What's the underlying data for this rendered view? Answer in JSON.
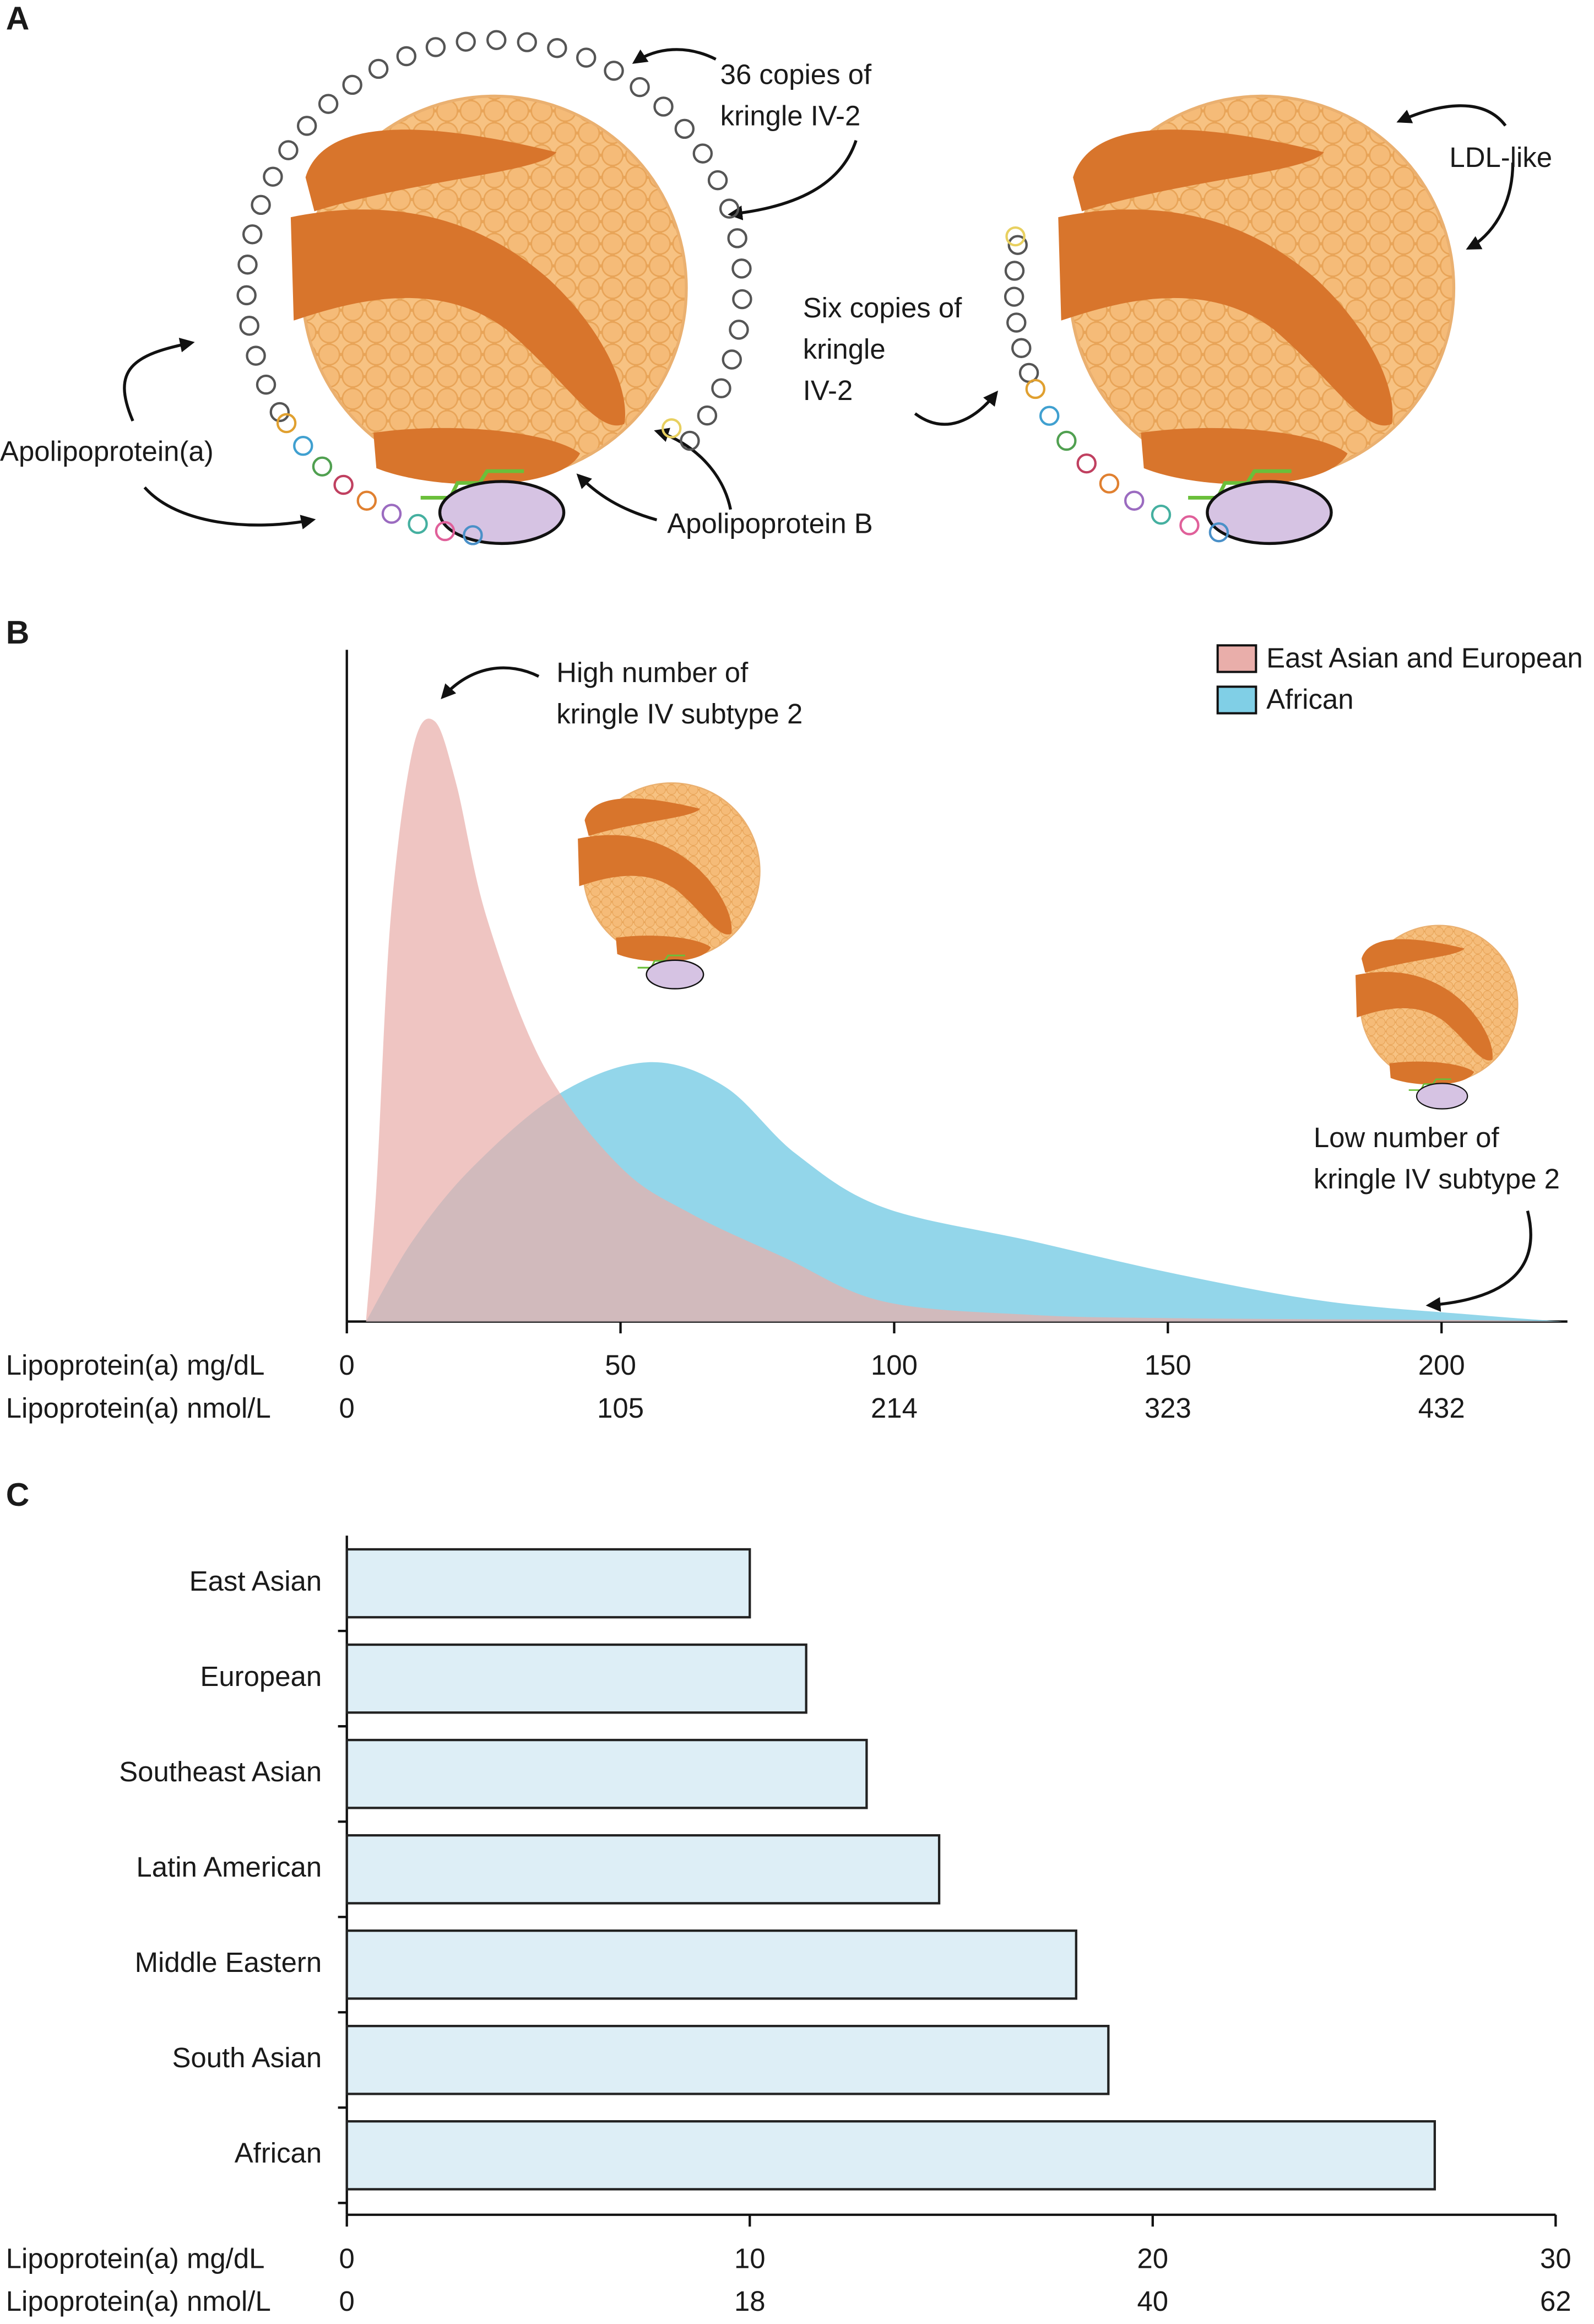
{
  "panel_a": {
    "label": "A",
    "copies_36": [
      "36 copies of",
      "kringle IV-2"
    ],
    "ldl_like": "LDL-like",
    "copies_6": [
      "Six copies of",
      "kringle",
      "IV-2"
    ],
    "apo_a": "Apolipoprotein(a)",
    "apo_b": "Apolipoprotein B"
  },
  "chart_data": [
    {
      "panel": "B",
      "type": "area",
      "x_label": "Lipoprotein(a) mg/dL",
      "x2_label": "Lipoprotein(a) nmol/L",
      "xlim": [
        0,
        223
      ],
      "xticks": [
        0,
        50,
        100,
        150,
        200
      ],
      "x2_tick_labels": [
        "0",
        "105",
        "214",
        "323",
        "432"
      ],
      "ylim": [
        0,
        100
      ],
      "legend": "top-right",
      "annotations": [
        [
          "High number of",
          "kringle IV subtype 2"
        ],
        [
          "Low number of",
          "kringle IV subtype 2"
        ]
      ],
      "series": [
        {
          "name": "East Asian and European",
          "color": "#e9aeaa",
          "x": [
            3.5,
            5.4,
            8,
            12,
            16,
            20,
            25.6,
            36,
            50,
            63,
            80,
            98,
            125,
            152,
            206,
            222
          ],
          "values": [
            0,
            20,
            60,
            85,
            89.4,
            80,
            60,
            38,
            23,
            16,
            9.5,
            3,
            1,
            0.5,
            0.2,
            0
          ]
        },
        {
          "name": "African",
          "color": "#80cfe6",
          "x": [
            3.5,
            12,
            23,
            39,
            55,
            69,
            82,
            98,
            125,
            152,
            179,
            206,
            222
          ],
          "values": [
            0,
            12,
            23,
            34,
            38.6,
            35,
            25,
            17,
            12,
            7,
            3,
            1,
            0
          ]
        }
      ]
    },
    {
      "panel": "C",
      "type": "hbar",
      "x_label": "Lipoprotein(a) mg/dL",
      "x2_label": "Lipoprotein(a) nmol/L",
      "xlim": [
        0,
        30
      ],
      "xticks": [
        0,
        10,
        20,
        30
      ],
      "x2_tick_labels": [
        "0",
        "18",
        "40",
        "62"
      ],
      "color": "#ddeef6",
      "categories": [
        "East Asian",
        "European",
        "Southeast Asian",
        "Latin American",
        "Middle Eastern",
        "South Asian",
        "African"
      ],
      "values": [
        10.0,
        11.4,
        12.9,
        14.7,
        18.1,
        18.9,
        27.0
      ]
    }
  ]
}
